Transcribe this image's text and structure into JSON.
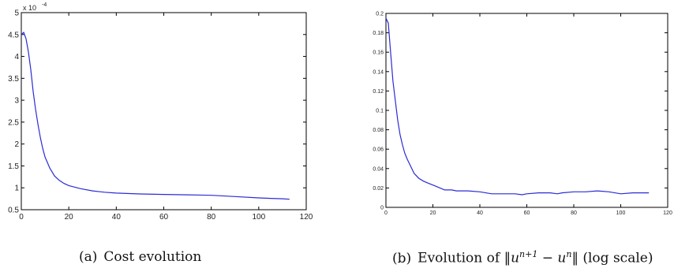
{
  "chart_data": [
    {
      "type": "line",
      "caption_label": "(a)",
      "caption": "Cost evolution",
      "xlim": [
        0,
        120
      ],
      "ylim": [
        0.5,
        5
      ],
      "y_exponent": "x 10",
      "y_exponent_power": "-4",
      "x_ticks": [
        0,
        20,
        40,
        60,
        80,
        100,
        120
      ],
      "x_tick_labels": [
        "0",
        "20",
        "40",
        "60",
        "80",
        "100",
        "120"
      ],
      "y_ticks": [
        0.5,
        1,
        1.5,
        2,
        2.5,
        3,
        3.5,
        4,
        4.5,
        5
      ],
      "y_tick_labels": [
        "0.5",
        "1",
        "1.5",
        "2",
        "2.5",
        "3",
        "3.5",
        "4",
        "4.5",
        "5"
      ],
      "grid": false,
      "series": [
        {
          "color": "#2b2bd6",
          "x": [
            0,
            1,
            2,
            3,
            4,
            5,
            6,
            7,
            8,
            9,
            10,
            12,
            14,
            16,
            18,
            20,
            25,
            30,
            35,
            40,
            50,
            60,
            70,
            80,
            90,
            100,
            105,
            110,
            113
          ],
          "y": [
            4.5,
            4.55,
            4.4,
            4.1,
            3.7,
            3.2,
            2.8,
            2.45,
            2.15,
            1.9,
            1.7,
            1.45,
            1.27,
            1.17,
            1.1,
            1.05,
            0.98,
            0.93,
            0.9,
            0.88,
            0.86,
            0.85,
            0.84,
            0.83,
            0.8,
            0.77,
            0.76,
            0.75,
            0.74
          ]
        }
      ]
    },
    {
      "type": "line",
      "caption_label": "(b)",
      "caption_prefix": "Evolution of ",
      "caption_expr_open": "‖u",
      "caption_expr_sup": "n+1",
      "caption_expr_mid": " − u",
      "caption_expr_sup2": "n",
      "caption_expr_close": "‖",
      "caption_suffix": " (log scale)",
      "xlim": [
        0,
        120
      ],
      "ylim": [
        0,
        0.2
      ],
      "x_ticks": [
        0,
        20,
        40,
        60,
        80,
        100,
        120
      ],
      "x_tick_labels": [
        "0",
        "20",
        "40",
        "60",
        "80",
        "100",
        "120"
      ],
      "y_ticks": [
        0,
        0.02,
        0.04,
        0.06,
        0.08,
        0.1,
        0.12,
        0.14,
        0.16,
        0.18,
        0.2
      ],
      "y_tick_labels": [
        "0",
        "0.02",
        "0.04",
        "0.06",
        "0.08",
        "0.1",
        "0.12",
        "0.14",
        "0.16",
        "0.18",
        "0.2"
      ],
      "grid": false,
      "series": [
        {
          "color": "#2b2bd6",
          "x": [
            0,
            1,
            2,
            3,
            4,
            5,
            6,
            7,
            8,
            9,
            10,
            12,
            14,
            16,
            18,
            20,
            22,
            25,
            28,
            30,
            35,
            40,
            45,
            50,
            55,
            58,
            60,
            65,
            70,
            73,
            75,
            80,
            85,
            90,
            95,
            100,
            105,
            110,
            112
          ],
          "y": [
            0.195,
            0.19,
            0.16,
            0.13,
            0.11,
            0.09,
            0.075,
            0.065,
            0.056,
            0.05,
            0.045,
            0.035,
            0.03,
            0.027,
            0.025,
            0.023,
            0.021,
            0.018,
            0.018,
            0.017,
            0.017,
            0.016,
            0.014,
            0.014,
            0.014,
            0.013,
            0.014,
            0.015,
            0.015,
            0.014,
            0.015,
            0.016,
            0.016,
            0.017,
            0.016,
            0.014,
            0.015,
            0.015,
            0.015
          ]
        }
      ]
    }
  ]
}
